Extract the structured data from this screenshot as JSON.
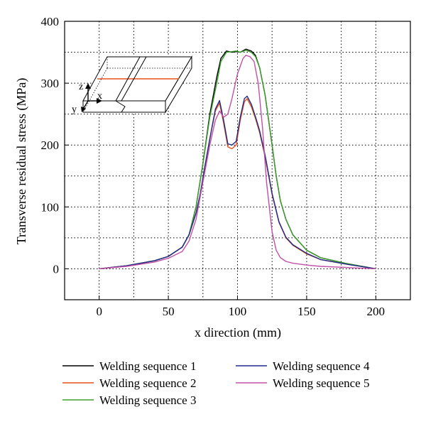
{
  "chart_data": {
    "type": "line",
    "xlabel": "x direction (mm)",
    "ylabel": "Transverse residual stress (MPa)",
    "xlim": [
      -25,
      225
    ],
    "ylim": [
      -50,
      400
    ],
    "x_ticks": [
      0,
      50,
      100,
      150,
      200
    ],
    "y_ticks": [
      0,
      100,
      200,
      300,
      400
    ],
    "x_tick_labels": [
      "0",
      "50",
      "100",
      "150",
      "200"
    ],
    "y_tick_labels": [
      "0",
      "100",
      "200",
      "300",
      "400"
    ],
    "grid": true,
    "grid_style": "dotted",
    "legend_position": "bottom",
    "inset": {
      "axes": {
        "z": "z",
        "x": "x",
        "y": "y"
      }
    },
    "series": [
      {
        "name": "Welding sequence 1",
        "color": "#000000",
        "x": [
          0,
          20,
          40,
          50,
          60,
          65,
          70,
          75,
          80,
          85,
          88,
          92,
          96,
          99,
          102,
          106,
          110,
          113,
          116,
          120,
          125,
          128,
          131,
          135,
          140,
          150,
          160,
          180,
          200
        ],
        "y": [
          0,
          5,
          13,
          20,
          35,
          55,
          100,
          170,
          250,
          310,
          340,
          352,
          350,
          351,
          350,
          355,
          352,
          345,
          325,
          280,
          200,
          150,
          110,
          80,
          55,
          30,
          18,
          8,
          0
        ]
      },
      {
        "name": "Welding sequence 2",
        "color": "#e8501a",
        "x": [
          0,
          20,
          40,
          50,
          60,
          65,
          70,
          73,
          76,
          80,
          84,
          87,
          90,
          93,
          96,
          99,
          102,
          105,
          107,
          110,
          113,
          116,
          120,
          125,
          130,
          135,
          140,
          150,
          160,
          180,
          200
        ],
        "y": [
          0,
          5,
          13,
          20,
          35,
          55,
          90,
          120,
          160,
          210,
          255,
          268,
          235,
          197,
          194,
          200,
          240,
          270,
          275,
          262,
          243,
          220,
          180,
          120,
          75,
          50,
          38,
          24,
          15,
          7,
          0
        ]
      },
      {
        "name": "Welding sequence 3",
        "color": "#3aa02a",
        "x": [
          0,
          20,
          40,
          50,
          60,
          65,
          70,
          75,
          80,
          85,
          88,
          92,
          96,
          99,
          102,
          106,
          110,
          113,
          116,
          120,
          125,
          128,
          131,
          135,
          140,
          150,
          160,
          180,
          200
        ],
        "y": [
          0,
          5,
          13,
          20,
          35,
          55,
          100,
          170,
          245,
          300,
          335,
          350,
          351,
          352,
          350,
          353,
          350,
          343,
          325,
          280,
          200,
          150,
          110,
          80,
          55,
          30,
          18,
          8,
          0
        ]
      },
      {
        "name": "Welding sequence 4",
        "color": "#1f2a8a",
        "x": [
          0,
          20,
          40,
          50,
          60,
          65,
          70,
          73,
          76,
          80,
          84,
          87,
          90,
          93,
          96,
          99,
          102,
          105,
          107,
          110,
          113,
          116,
          120,
          125,
          130,
          135,
          140,
          150,
          160,
          180,
          200
        ],
        "y": [
          0,
          5,
          13,
          20,
          35,
          55,
          90,
          120,
          160,
          210,
          258,
          272,
          240,
          202,
          200,
          206,
          245,
          275,
          279,
          266,
          246,
          223,
          183,
          122,
          76,
          51,
          39,
          25,
          15,
          7,
          0
        ]
      },
      {
        "name": "Welding sequence 5",
        "color": "#c050a8",
        "x": [
          0,
          20,
          40,
          50,
          60,
          65,
          70,
          75,
          80,
          84,
          87,
          90,
          93,
          96,
          100,
          104,
          106,
          109,
          112,
          115,
          118,
          121,
          125,
          128,
          131,
          135,
          140,
          150,
          160,
          180,
          200
        ],
        "y": [
          0,
          4,
          11,
          17,
          28,
          45,
          80,
          140,
          200,
          240,
          255,
          245,
          250,
          275,
          315,
          340,
          345,
          343,
          335,
          300,
          230,
          140,
          60,
          30,
          18,
          12,
          9,
          6,
          4,
          2,
          0
        ]
      }
    ]
  }
}
